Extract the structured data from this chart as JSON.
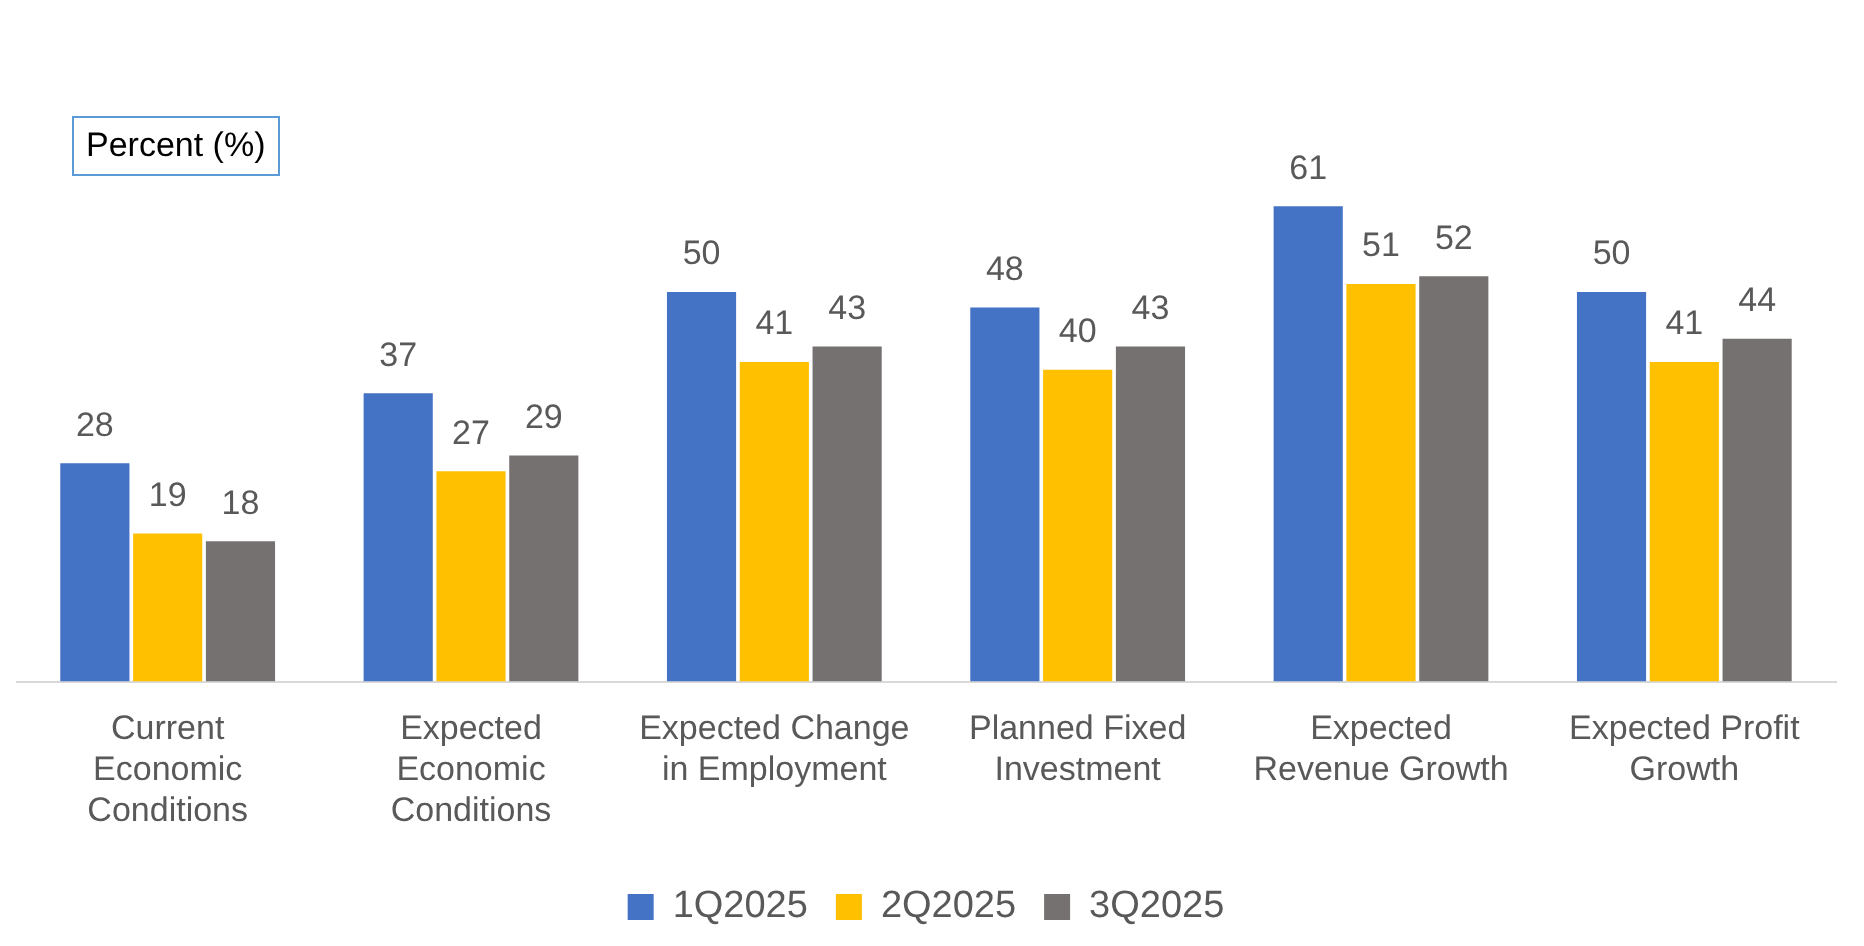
{
  "chart_data": {
    "type": "bar",
    "ylabel": "Percent (%)",
    "categories": [
      "Current Economic Conditions",
      "Expected Economic Conditions",
      "Expected Change in Employment",
      "Planned Fixed Investment",
      "Expected Revenue Growth",
      "Expected Profit Growth"
    ],
    "series": [
      {
        "name": "1Q2025",
        "color": "#4472c4",
        "values": [
          28,
          37,
          50,
          48,
          61,
          50
        ]
      },
      {
        "name": "2Q2025",
        "color": "#ffc000",
        "values": [
          19,
          27,
          41,
          40,
          51,
          41
        ]
      },
      {
        "name": "3Q2025",
        "color": "#767171",
        "values": [
          18,
          29,
          43,
          43,
          52,
          44
        ]
      }
    ],
    "data_labels": true,
    "grid": false,
    "legend": "bottom"
  }
}
